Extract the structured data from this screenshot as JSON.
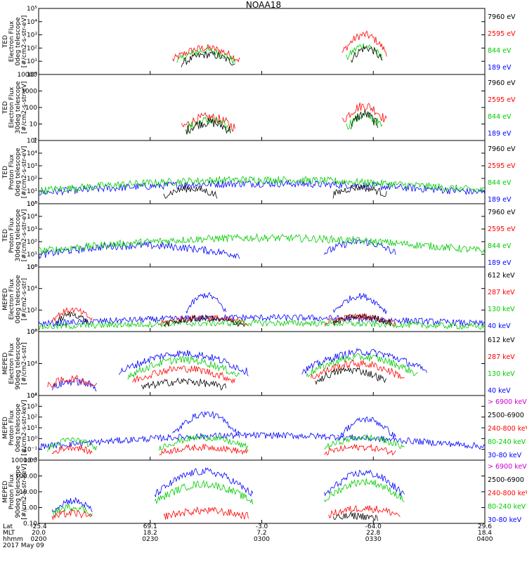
{
  "title": "NOAA18",
  "chart_data": {
    "type": "line",
    "x_axis": {
      "row_labels": [
        "Lat",
        "MLT",
        "hhmm",
        "2017 May 09"
      ],
      "ticks": [
        {
          "lat": "-25.4",
          "mlt": "20.0",
          "hhmm": "0200"
        },
        {
          "lat": "69.1",
          "mlt": "18.2",
          "hhmm": "0230"
        },
        {
          "lat": "-3.0",
          "mlt": "7.2",
          "hhmm": "0300"
        },
        {
          "lat": "-64.0",
          "mlt": "22.8",
          "hhmm": "0330"
        },
        {
          "lat": "29.6",
          "mlt": "18.4",
          "hhmm": "0400"
        }
      ]
    },
    "panels": [
      {
        "ylabel": [
          "TED",
          "Electron Flux",
          "0deg telescope",
          "[#/cm2-s-str-eV]"
        ],
        "yticks": [
          "10⁰",
          "10¹",
          "10²",
          "10³",
          "10⁴",
          "10⁵"
        ],
        "ylim_log": [
          0,
          5
        ],
        "legend": [
          {
            "name": "7960 eV",
            "color": "#000000"
          },
          {
            "name": "2595 eV",
            "color": "#ff0000"
          },
          {
            "name": "844 eV",
            "color": "#00cc00"
          },
          {
            "name": "189 eV",
            "color": "#0000ff"
          }
        ],
        "series": [
          {
            "color": "#ff0000",
            "segments": [
              {
                "start": 0.3,
                "end": 0.45,
                "level": 2.0
              },
              {
                "start": 0.68,
                "end": 0.78,
                "level": 3.0
              }
            ]
          },
          {
            "color": "#00cc00",
            "segments": [
              {
                "start": 0.31,
                "end": 0.44,
                "level": 1.8
              },
              {
                "start": 0.69,
                "end": 0.77,
                "level": 2.2
              }
            ]
          },
          {
            "color": "#000000",
            "segments": [
              {
                "start": 0.32,
                "end": 0.44,
                "level": 1.5
              },
              {
                "start": 0.7,
                "end": 0.77,
                "level": 2.0
              }
            ]
          }
        ]
      },
      {
        "ylabel": [
          "TED",
          "Electron Flux",
          "30deg telescope",
          "[#/cm2-s-str-eV]"
        ],
        "yticks": [
          "1",
          "10",
          "100",
          "1000",
          "10000"
        ],
        "ylim_log": [
          0,
          4
        ],
        "legend": [
          {
            "name": "7960 eV",
            "color": "#000000"
          },
          {
            "name": "2595 eV",
            "color": "#ff0000"
          },
          {
            "name": "844 eV",
            "color": "#00cc00"
          },
          {
            "name": "189 eV",
            "color": "#0000ff"
          }
        ],
        "series": [
          {
            "color": "#ff0000",
            "segments": [
              {
                "start": 0.32,
                "end": 0.44,
                "level": 1.4
              },
              {
                "start": 0.68,
                "end": 0.78,
                "level": 2.1
              }
            ]
          },
          {
            "color": "#00cc00",
            "segments": [
              {
                "start": 0.33,
                "end": 0.43,
                "level": 1.2
              },
              {
                "start": 0.69,
                "end": 0.77,
                "level": 1.5
              }
            ]
          },
          {
            "color": "#000000",
            "segments": [
              {
                "start": 0.33,
                "end": 0.43,
                "level": 1.1
              },
              {
                "start": 0.7,
                "end": 0.76,
                "level": 1.6
              }
            ]
          }
        ]
      },
      {
        "ylabel": [
          "TED",
          "Proton Flux",
          "0deg telescope",
          "[#/cm2-s-str-eV]"
        ],
        "yticks": [
          "10⁰",
          "10¹",
          "10²",
          "10³",
          "10⁴",
          "10⁵"
        ],
        "ylim_log": [
          0,
          5
        ],
        "legend": [
          {
            "name": "7960 eV",
            "color": "#000000"
          },
          {
            "name": "2595 eV",
            "color": "#ff0000"
          },
          {
            "name": "844 eV",
            "color": "#00cc00"
          },
          {
            "name": "189 eV",
            "color": "#0000ff"
          }
        ],
        "series": [
          {
            "color": "#0000ff",
            "segments": [
              {
                "start": 0.0,
                "end": 1.0,
                "level": 1.6
              }
            ]
          },
          {
            "color": "#00cc00",
            "segments": [
              {
                "start": 0.0,
                "end": 1.0,
                "level": 1.9
              }
            ]
          },
          {
            "color": "#000000",
            "segments": [
              {
                "start": 0.28,
                "end": 0.4,
                "level": 1.2
              },
              {
                "start": 0.66,
                "end": 0.78,
                "level": 1.3
              }
            ]
          }
        ]
      },
      {
        "ylabel": [
          "TED",
          "Proton Flux",
          "30deg telescope",
          "[#/cm2-s-str-eV]"
        ],
        "yticks": [
          "10⁰",
          "10¹",
          "10²",
          "10³",
          "10⁴",
          "10⁵"
        ],
        "ylim_log": [
          0,
          5
        ],
        "legend": [
          {
            "name": "7960 eV",
            "color": "#000000"
          },
          {
            "name": "2595 eV",
            "color": "#ff0000"
          },
          {
            "name": "844 eV",
            "color": "#00cc00"
          },
          {
            "name": "189 eV",
            "color": "#0000ff"
          }
        ],
        "series": [
          {
            "color": "#0000ff",
            "segments": [
              {
                "start": 0.0,
                "end": 0.45,
                "level": 1.7
              },
              {
                "start": 0.64,
                "end": 0.8,
                "level": 2.0
              }
            ]
          },
          {
            "color": "#00cc00",
            "segments": [
              {
                "start": 0.0,
                "end": 1.0,
                "level": 2.3
              }
            ]
          }
        ]
      },
      {
        "ylabel": [
          "MEPED",
          "Electron Flux",
          "0deg telescope",
          "[#/cm2-s-str]"
        ],
        "yticks": [
          "10⁰",
          "10²",
          "10⁴",
          "10⁶"
        ],
        "ylim_log": [
          0,
          6
        ],
        "legend": [
          {
            "name": "612 keV",
            "color": "#000000"
          },
          {
            "name": "287 keV",
            "color": "#ff0000"
          },
          {
            "name": "130 keV",
            "color": "#00cc00"
          },
          {
            "name": "40 keV",
            "color": "#0000ff"
          }
        ],
        "series": [
          {
            "color": "#0000ff",
            "segments": [
              {
                "start": 0.0,
                "end": 1.0,
                "level": 1.3
              },
              {
                "start": 0.33,
                "end": 0.42,
                "level": 3.4
              },
              {
                "start": 0.66,
                "end": 0.78,
                "level": 3.3
              }
            ]
          },
          {
            "color": "#ff0000",
            "segments": [
              {
                "start": 0.03,
                "end": 0.12,
                "level": 2.0
              },
              {
                "start": 0.27,
                "end": 0.47,
                "level": 1.3
              },
              {
                "start": 0.64,
                "end": 0.8,
                "level": 1.4
              }
            ]
          },
          {
            "color": "#00cc00",
            "segments": [
              {
                "start": 0.0,
                "end": 1.0,
                "level": 0.8
              }
            ]
          },
          {
            "color": "#000000",
            "segments": [
              {
                "start": 0.04,
                "end": 0.11,
                "level": 1.6
              },
              {
                "start": 0.28,
                "end": 0.46,
                "level": 1.2
              },
              {
                "start": 0.66,
                "end": 0.79,
                "level": 1.4
              }
            ]
          }
        ]
      },
      {
        "ylabel": [
          "MEPED",
          "Electron Flux",
          "90deg telescope",
          "[#/cm2-s-str]"
        ],
        "yticks": [
          "10²",
          "10⁴",
          "10⁶"
        ],
        "ylim_log": [
          1.5,
          6.5
        ],
        "legend": [
          {
            "name": "612 keV",
            "color": "#000000"
          },
          {
            "name": "287 keV",
            "color": "#ff0000"
          },
          {
            "name": "130 keV",
            "color": "#00cc00"
          },
          {
            "name": "40 keV",
            "color": "#0000ff"
          }
        ],
        "series": [
          {
            "color": "#0000ff",
            "segments": [
              {
                "start": 0.03,
                "end": 0.13,
                "level": 2.6
              },
              {
                "start": 0.18,
                "end": 0.47,
                "level": 4.8
              },
              {
                "start": 0.59,
                "end": 0.87,
                "level": 4.9
              }
            ]
          },
          {
            "color": "#00cc00",
            "segments": [
              {
                "start": 0.2,
                "end": 0.45,
                "level": 4.3
              },
              {
                "start": 0.6,
                "end": 0.85,
                "level": 4.5
              }
            ]
          },
          {
            "color": "#ff0000",
            "segments": [
              {
                "start": 0.02,
                "end": 0.13,
                "level": 2.8
              },
              {
                "start": 0.21,
                "end": 0.44,
                "level": 3.6
              },
              {
                "start": 0.61,
                "end": 0.82,
                "level": 4.0
              }
            ]
          },
          {
            "color": "#000000",
            "segments": [
              {
                "start": 0.23,
                "end": 0.42,
                "level": 2.6
              },
              {
                "start": 0.62,
                "end": 0.78,
                "level": 3.5
              }
            ]
          }
        ]
      },
      {
        "ylabel": [
          "MEPED",
          "Proton Flux",
          "0deg telescope",
          "[#/cm2-s-str-keV]"
        ],
        "yticks": [
          "10⁻²",
          "10⁻¹",
          "10⁰",
          "10¹",
          "10²",
          "10³",
          "10⁴"
        ],
        "ylim_log": [
          -2,
          4
        ],
        "legend": [
          {
            "name": "> 6900 keV",
            "color": "#cc00cc"
          },
          {
            "name": "2500-6900",
            "color": "#000000"
          },
          {
            "name": "240-800 keV",
            "color": "#ff0000"
          },
          {
            "name": "80-240 keV",
            "color": "#00cc00"
          },
          {
            "name": "30-80 keV",
            "color": "#0000ff"
          }
        ],
        "series": [
          {
            "color": "#0000ff",
            "segments": [
              {
                "start": 0.0,
                "end": 1.0,
                "level": 0.3
              },
              {
                "start": 0.3,
                "end": 0.45,
                "level": 2.3
              },
              {
                "start": 0.67,
                "end": 0.8,
                "level": 1.8
              }
            ]
          },
          {
            "color": "#00cc00",
            "segments": [
              {
                "start": 0.02,
                "end": 0.13,
                "level": -0.1
              },
              {
                "start": 0.27,
                "end": 0.47,
                "level": 0.1
              },
              {
                "start": 0.64,
                "end": 0.82,
                "level": 0.1
              }
            ]
          },
          {
            "color": "#ff0000",
            "segments": [
              {
                "start": 0.03,
                "end": 0.12,
                "level": -0.8
              },
              {
                "start": 0.27,
                "end": 0.47,
                "level": -0.8
              },
              {
                "start": 0.64,
                "end": 0.8,
                "level": -0.8
              }
            ]
          }
        ]
      },
      {
        "ylabel": [
          "MEPED",
          "Proton Flux",
          "90deg telescope",
          "[#/cm2-s-str-keV]"
        ],
        "yticks": [
          "0.10",
          "1.00",
          "10.00",
          "100.00",
          "1000.00"
        ],
        "ylim_log": [
          -1.5,
          3.5
        ],
        "legend": [
          {
            "name": "> 6900 keV",
            "color": "#cc00cc"
          },
          {
            "name": "2500-6900",
            "color": "#000000"
          },
          {
            "name": "240-800 keV",
            "color": "#ff0000"
          },
          {
            "name": "80-240 keV",
            "color": "#00cc00"
          },
          {
            "name": "30-80 keV",
            "color": "#0000ff"
          }
        ],
        "series": [
          {
            "color": "#0000ff",
            "segments": [
              {
                "start": 0.03,
                "end": 0.12,
                "level": 0.3
              },
              {
                "start": 0.26,
                "end": 0.48,
                "level": 2.6
              },
              {
                "start": 0.64,
                "end": 0.82,
                "level": 2.5
              }
            ]
          },
          {
            "color": "#00cc00",
            "segments": [
              {
                "start": 0.03,
                "end": 0.12,
                "level": -0.2
              },
              {
                "start": 0.26,
                "end": 0.48,
                "level": 1.6
              },
              {
                "start": 0.64,
                "end": 0.82,
                "level": 1.8
              }
            ]
          },
          {
            "color": "#ff0000",
            "segments": [
              {
                "start": 0.03,
                "end": 0.12,
                "level": -0.7
              },
              {
                "start": 0.28,
                "end": 0.47,
                "level": -0.5
              },
              {
                "start": 0.65,
                "end": 0.81,
                "level": -0.3
              }
            ]
          },
          {
            "color": "#000000",
            "segments": [
              {
                "start": 0.66,
                "end": 0.76,
                "level": -0.9
              }
            ]
          }
        ]
      }
    ]
  }
}
